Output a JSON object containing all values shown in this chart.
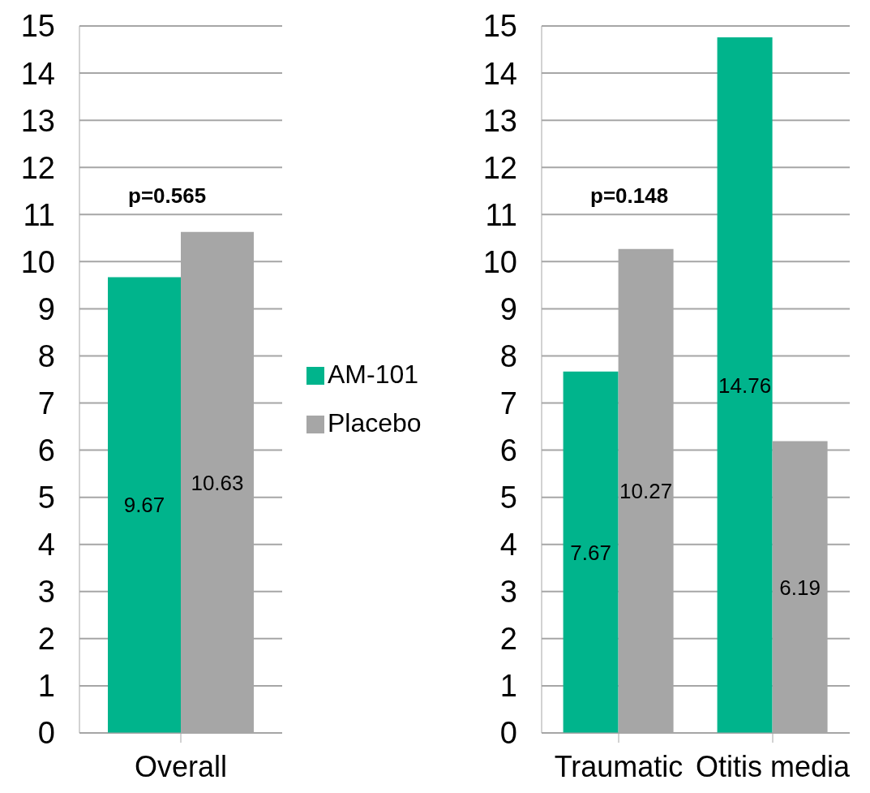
{
  "chart_data": [
    {
      "type": "bar",
      "categories": [
        "Overall"
      ],
      "series": [
        {
          "name": "AM-101",
          "color": "#00b48c",
          "values": [
            9.67
          ]
        },
        {
          "name": "Placebo",
          "color": "#a6a6a6",
          "values": [
            10.63
          ]
        }
      ],
      "ylim": [
        0,
        15
      ],
      "yticks": [
        0,
        1,
        2,
        3,
        4,
        5,
        6,
        7,
        8,
        9,
        10,
        11,
        12,
        13,
        14,
        15
      ],
      "grid": "y",
      "data_labels": true,
      "legend": "right",
      "annotations": [
        "p=0.565"
      ]
    },
    {
      "type": "bar",
      "categories": [
        "Traumatic",
        "Otitis media"
      ],
      "series": [
        {
          "color": "#00b48c",
          "values": [
            7.67,
            14.76
          ]
        },
        {
          "color": "#a6a6a6",
          "values": [
            10.27,
            6.19
          ]
        }
      ],
      "ylim": [
        0,
        15
      ],
      "yticks": [
        0,
        1,
        2,
        3,
        4,
        5,
        6,
        7,
        8,
        9,
        10,
        11,
        12,
        13,
        14,
        15
      ],
      "grid": "y",
      "data_labels": true,
      "annotations": [
        "p=0.148"
      ]
    }
  ]
}
